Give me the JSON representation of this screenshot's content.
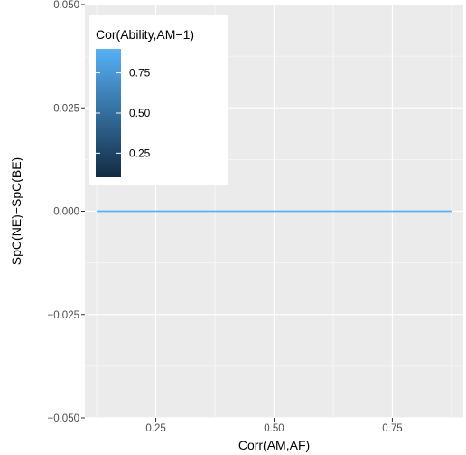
{
  "chart_data": {
    "type": "line",
    "xlabel": "Corr(AM,AF)",
    "ylabel": "SpC(NE)−SpC(BE)",
    "xlim": [
      0.1,
      0.9
    ],
    "ylim": [
      -0.05,
      0.05
    ],
    "x_ticks": [
      0.25,
      0.5,
      0.75
    ],
    "x_tick_labels": [
      "0.25",
      "0.50",
      "0.75"
    ],
    "y_ticks": [
      -0.05,
      -0.025,
      0,
      0.025,
      0.05
    ],
    "y_tick_labels": [
      "−0.050",
      "−0.025",
      "0.000",
      "0.025",
      "0.050"
    ],
    "grid": true,
    "series": [
      {
        "x": [
          0.125,
          0.875
        ],
        "y": [
          0,
          0
        ],
        "color_value": 0.9
      }
    ],
    "legend": {
      "title": "Cor(Ability,AM−1)",
      "placement": "top-left",
      "type": "colorbar",
      "breaks": [
        0.75,
        0.5,
        0.25
      ],
      "break_labels": [
        "0.75",
        "0.50",
        "0.25"
      ],
      "range": [
        0.1,
        0.9
      ],
      "low_color": "#132B43",
      "high_color": "#56B1F7"
    },
    "colors": {
      "panel_background": "#EBEBEB",
      "grid_major": "#FFFFFF",
      "line": "#56B1F7"
    }
  }
}
